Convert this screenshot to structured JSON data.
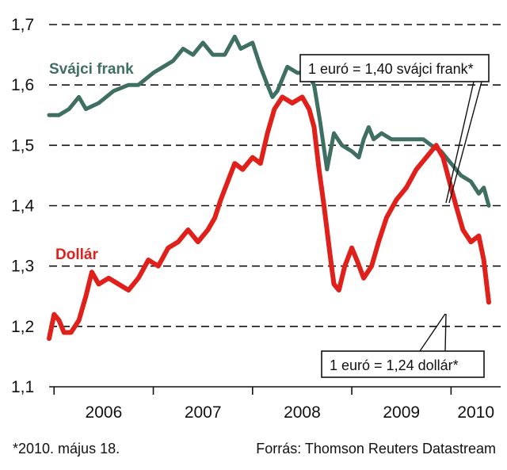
{
  "chart_data": {
    "type": "line",
    "title": "",
    "xlabel": "",
    "ylabel": "",
    "ylim": [
      1.1,
      1.7
    ],
    "yticks": [
      "1,7",
      "1,6",
      "1,5",
      "1,4",
      "1,3",
      "1,2",
      "1,1"
    ],
    "ytick_values": [
      1.7,
      1.6,
      1.5,
      1.4,
      1.3,
      1.2,
      1.1
    ],
    "categories": [
      "2006",
      "2007",
      "2008",
      "2009",
      "2010"
    ],
    "xlim": [
      2005.95,
      2010.5
    ],
    "grid": true,
    "series": [
      {
        "name": "Svájci frank",
        "color": "#3f6e62",
        "points": [
          [
            2005.95,
            1.55
          ],
          [
            2006.05,
            1.55
          ],
          [
            2006.15,
            1.56
          ],
          [
            2006.25,
            1.58
          ],
          [
            2006.32,
            1.56
          ],
          [
            2006.45,
            1.57
          ],
          [
            2006.6,
            1.59
          ],
          [
            2006.75,
            1.6
          ],
          [
            2006.85,
            1.6
          ],
          [
            2007.0,
            1.62
          ],
          [
            2007.1,
            1.63
          ],
          [
            2007.2,
            1.64
          ],
          [
            2007.3,
            1.66
          ],
          [
            2007.4,
            1.65
          ],
          [
            2007.5,
            1.67
          ],
          [
            2007.6,
            1.65
          ],
          [
            2007.72,
            1.65
          ],
          [
            2007.82,
            1.68
          ],
          [
            2007.88,
            1.66
          ],
          [
            2008.0,
            1.67
          ],
          [
            2008.08,
            1.63
          ],
          [
            2008.15,
            1.6
          ],
          [
            2008.2,
            1.58
          ],
          [
            2008.25,
            1.59
          ],
          [
            2008.35,
            1.63
          ],
          [
            2008.45,
            1.62
          ],
          [
            2008.55,
            1.62
          ],
          [
            2008.62,
            1.6
          ],
          [
            2008.68,
            1.54
          ],
          [
            2008.75,
            1.46
          ],
          [
            2008.82,
            1.52
          ],
          [
            2008.9,
            1.5
          ],
          [
            2009.0,
            1.49
          ],
          [
            2009.07,
            1.48
          ],
          [
            2009.12,
            1.51
          ],
          [
            2009.17,
            1.53
          ],
          [
            2009.22,
            1.51
          ],
          [
            2009.3,
            1.52
          ],
          [
            2009.4,
            1.51
          ],
          [
            2009.5,
            1.51
          ],
          [
            2009.6,
            1.51
          ],
          [
            2009.72,
            1.51
          ],
          [
            2009.8,
            1.5
          ],
          [
            2009.9,
            1.49
          ],
          [
            2010.0,
            1.47
          ],
          [
            2010.1,
            1.45
          ],
          [
            2010.2,
            1.44
          ],
          [
            2010.28,
            1.42
          ],
          [
            2010.33,
            1.43
          ],
          [
            2010.38,
            1.4
          ]
        ]
      },
      {
        "name": "Dollár",
        "color": "#e0201b",
        "points": [
          [
            2005.95,
            1.18
          ],
          [
            2006.0,
            1.22
          ],
          [
            2006.05,
            1.21
          ],
          [
            2006.1,
            1.19
          ],
          [
            2006.17,
            1.19
          ],
          [
            2006.25,
            1.21
          ],
          [
            2006.32,
            1.25
          ],
          [
            2006.38,
            1.29
          ],
          [
            2006.45,
            1.27
          ],
          [
            2006.55,
            1.28
          ],
          [
            2006.65,
            1.27
          ],
          [
            2006.75,
            1.26
          ],
          [
            2006.85,
            1.28
          ],
          [
            2006.95,
            1.31
          ],
          [
            2007.05,
            1.3
          ],
          [
            2007.15,
            1.33
          ],
          [
            2007.25,
            1.34
          ],
          [
            2007.35,
            1.36
          ],
          [
            2007.45,
            1.34
          ],
          [
            2007.55,
            1.36
          ],
          [
            2007.62,
            1.38
          ],
          [
            2007.68,
            1.41
          ],
          [
            2007.75,
            1.44
          ],
          [
            2007.82,
            1.47
          ],
          [
            2007.9,
            1.46
          ],
          [
            2008.0,
            1.48
          ],
          [
            2008.08,
            1.47
          ],
          [
            2008.15,
            1.52
          ],
          [
            2008.22,
            1.56
          ],
          [
            2008.3,
            1.58
          ],
          [
            2008.4,
            1.57
          ],
          [
            2008.5,
            1.58
          ],
          [
            2008.57,
            1.56
          ],
          [
            2008.62,
            1.53
          ],
          [
            2008.67,
            1.46
          ],
          [
            2008.72,
            1.4
          ],
          [
            2008.78,
            1.32
          ],
          [
            2008.82,
            1.27
          ],
          [
            2008.87,
            1.26
          ],
          [
            2008.93,
            1.3
          ],
          [
            2009.0,
            1.33
          ],
          [
            2009.05,
            1.31
          ],
          [
            2009.12,
            1.28
          ],
          [
            2009.2,
            1.3
          ],
          [
            2009.27,
            1.34
          ],
          [
            2009.35,
            1.38
          ],
          [
            2009.45,
            1.41
          ],
          [
            2009.55,
            1.43
          ],
          [
            2009.65,
            1.46
          ],
          [
            2009.75,
            1.48
          ],
          [
            2009.85,
            1.5
          ],
          [
            2009.92,
            1.48
          ],
          [
            2010.0,
            1.43
          ],
          [
            2010.05,
            1.4
          ],
          [
            2010.12,
            1.36
          ],
          [
            2010.2,
            1.34
          ],
          [
            2010.28,
            1.35
          ],
          [
            2010.33,
            1.31
          ],
          [
            2010.38,
            1.24
          ]
        ]
      }
    ],
    "annotations": {
      "chf": "1 euró = 1,40 svájci frank*",
      "usd": "1 euró = 1,24 dollár*"
    },
    "footnote": "*2010. május 18.",
    "source": "Forrás: Thomson Reuters Datastream"
  }
}
